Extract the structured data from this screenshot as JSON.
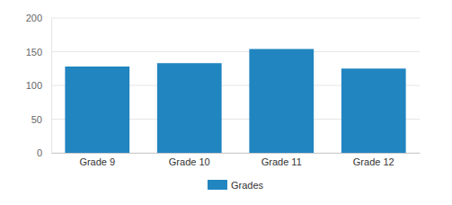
{
  "chart_data": {
    "type": "bar",
    "categories": [
      "Grade 9",
      "Grade 10",
      "Grade 11",
      "Grade 12"
    ],
    "series": [
      {
        "name": "Grades",
        "color": "#2185c0",
        "values": [
          128,
          133,
          154,
          125
        ]
      }
    ],
    "ylim": [
      0,
      200
    ],
    "yticks": [
      0,
      50,
      100,
      150,
      200
    ],
    "grid": true,
    "legend": "bottom"
  }
}
